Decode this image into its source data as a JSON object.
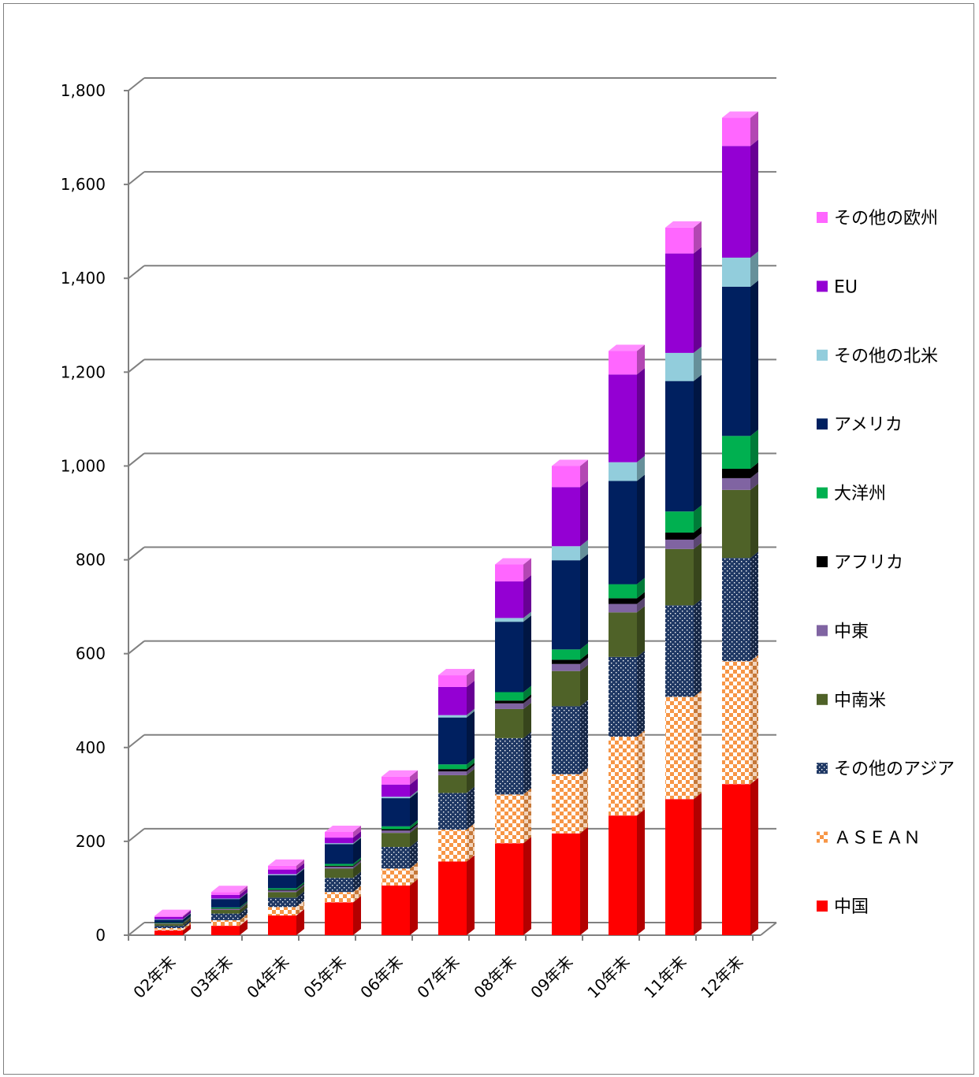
{
  "chart_data": {
    "type": "bar",
    "stacked": true,
    "style": "3d-column",
    "categories": [
      "02年末",
      "03年末",
      "04年末",
      "05年末",
      "06年末",
      "07年末",
      "08年末",
      "09年末",
      "10年末",
      "11年末",
      "12年末"
    ],
    "ylim": [
      0,
      1800
    ],
    "yticks": [
      0,
      200,
      400,
      600,
      800,
      1000,
      1200,
      1400,
      1600,
      1800
    ],
    "ytick_labels": [
      "0",
      "200",
      "400",
      "600",
      "800",
      "1,000",
      "1,200",
      "1,400",
      "1,600",
      "1,800"
    ],
    "grid": true,
    "legend_position": "right",
    "series": [
      {
        "name": "中国",
        "color": "#ff0000",
        "pattern": "solid",
        "values": [
          10,
          20,
          42,
          70,
          106,
          157,
          196,
          217,
          255,
          290,
          322
        ]
      },
      {
        "name": "ＡＳＥＡＮ",
        "color": "#f79646",
        "pattern": "checker",
        "values": [
          5,
          12,
          18,
          22,
          36,
          68,
          104,
          126,
          168,
          218,
          262
        ]
      },
      {
        "name": "その他のアジア",
        "color": "#1f3864",
        "pattern": "dots",
        "values": [
          5,
          14,
          20,
          30,
          46,
          78,
          120,
          145,
          170,
          195,
          220
        ]
      },
      {
        "name": "中南米",
        "color": "#4f6228",
        "pattern": "solid",
        "values": [
          4,
          8,
          12,
          20,
          30,
          38,
          62,
          75,
          95,
          120,
          145
        ]
      },
      {
        "name": "中東",
        "color": "#8064a2",
        "pattern": "solid",
        "values": [
          1,
          2,
          3,
          4,
          5,
          8,
          12,
          15,
          18,
          20,
          25
        ]
      },
      {
        "name": "アフリカ",
        "color": "#000000",
        "pattern": "solid",
        "values": [
          1,
          1,
          2,
          2,
          3,
          5,
          6,
          9,
          12,
          15,
          20
        ]
      },
      {
        "name": "大洋州",
        "color": "#00b050",
        "pattern": "solid",
        "values": [
          1,
          2,
          3,
          4,
          6,
          10,
          18,
          22,
          30,
          45,
          70
        ]
      },
      {
        "name": "アメリカ",
        "color": "#002060",
        "pattern": "solid",
        "values": [
          6,
          18,
          28,
          42,
          60,
          100,
          150,
          190,
          220,
          278,
          318
        ]
      },
      {
        "name": "その他の北米",
        "color": "#92cddc",
        "pattern": "solid",
        "values": [
          1,
          1,
          2,
          2,
          3,
          5,
          8,
          30,
          40,
          60,
          62
        ]
      },
      {
        "name": "EU",
        "color": "#9400d3",
        "pattern": "solid",
        "values": [
          5,
          8,
          10,
          12,
          26,
          60,
          78,
          126,
          187,
          212,
          238
        ]
      },
      {
        "name": "その他の欧州",
        "color": "#ff66ff",
        "pattern": "solid",
        "values": [
          2,
          6,
          8,
          12,
          17,
          25,
          36,
          45,
          50,
          55,
          60
        ]
      }
    ]
  }
}
